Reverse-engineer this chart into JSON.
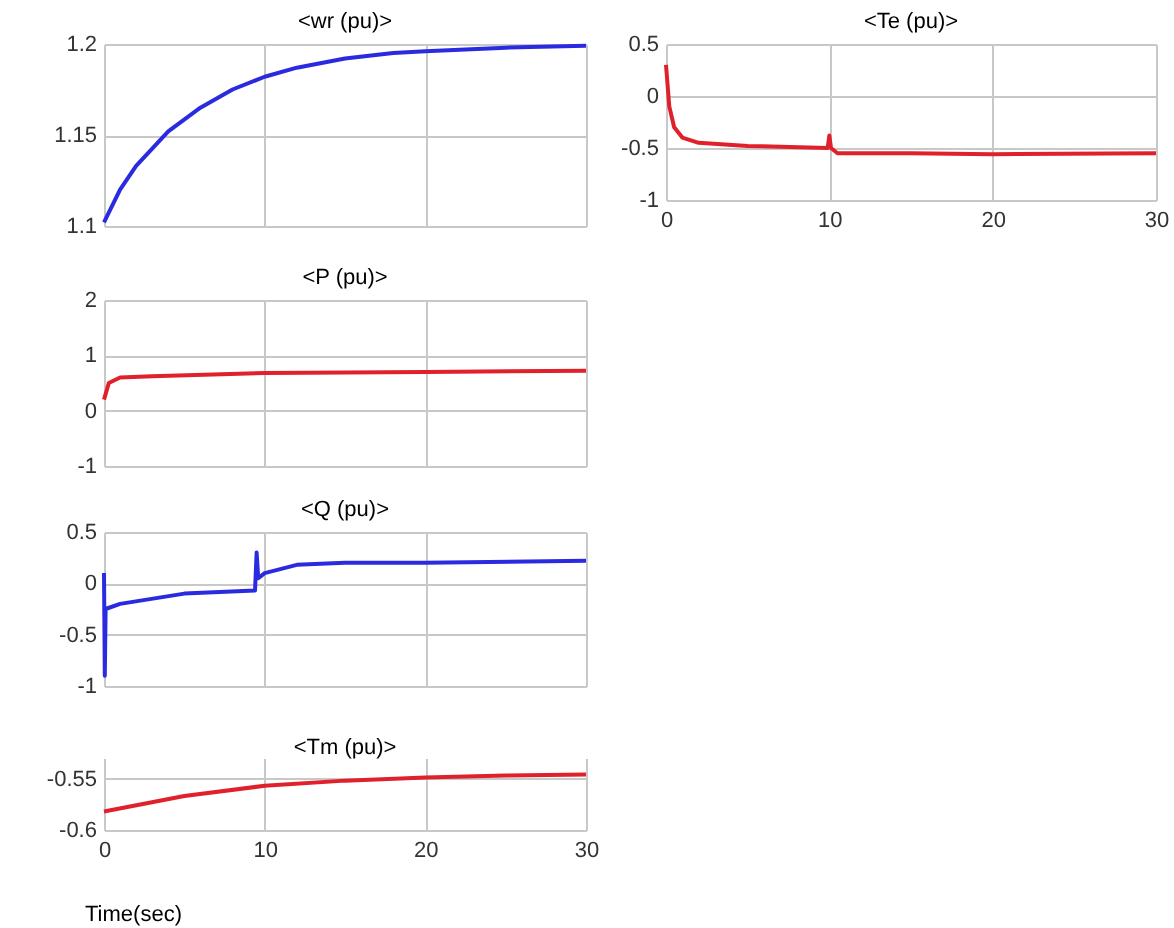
{
  "chart_data": [
    {
      "type": "line",
      "title": "<wr (pu)>",
      "x": [
        0,
        1,
        2,
        4,
        6,
        8,
        10,
        12,
        15,
        18,
        20,
        25,
        30
      ],
      "series": [
        {
          "color": "#2a2ae0",
          "values": [
            1.102,
            1.12,
            1.133,
            1.152,
            1.165,
            1.175,
            1.182,
            1.187,
            1.192,
            1.195,
            1.196,
            1.198,
            1.199
          ]
        }
      ],
      "xlim": [
        0,
        30
      ],
      "xticks": [
        0,
        10,
        20,
        30
      ],
      "ylim": [
        1.1,
        1.2
      ],
      "yticks": [
        1.1,
        1.15,
        1.2
      ],
      "grid": true,
      "tick_labels": "y"
    },
    {
      "type": "line",
      "title": "<Te (pu)>",
      "x": [
        0,
        0.2,
        0.5,
        1,
        2,
        5,
        9.9,
        10,
        10.1,
        10.5,
        15,
        20,
        30
      ],
      "series": [
        {
          "color": "#e0202a",
          "values": [
            0.3,
            -0.1,
            -0.3,
            -0.4,
            -0.45,
            -0.48,
            -0.5,
            -0.38,
            -0.5,
            -0.55,
            -0.55,
            -0.56,
            -0.55
          ]
        }
      ],
      "xlim": [
        0,
        30
      ],
      "xticks": [
        0,
        10,
        20,
        30
      ],
      "ylim": [
        -1,
        0.5
      ],
      "yticks": [
        -1,
        -0.5,
        0,
        0.5
      ],
      "grid": true
    },
    {
      "type": "line",
      "title": "<P (pu)>",
      "x": [
        0,
        0.3,
        1,
        3,
        10,
        20,
        30
      ],
      "series": [
        {
          "color": "#e0202a",
          "values": [
            0.2,
            0.5,
            0.6,
            0.62,
            0.68,
            0.7,
            0.72
          ]
        }
      ],
      "xlim": [
        0,
        30
      ],
      "xticks": [
        0,
        10,
        20,
        30
      ],
      "ylim": [
        -1,
        2
      ],
      "yticks": [
        -1,
        0,
        1,
        2
      ],
      "grid": true,
      "tick_labels": "y"
    },
    {
      "type": "line",
      "title": "<Q (pu)>",
      "x": [
        0,
        0.05,
        0.1,
        1,
        5,
        9.4,
        9.5,
        9.6,
        10,
        12,
        15,
        20,
        30
      ],
      "series": [
        {
          "color": "#2a2ae0",
          "values": [
            0.1,
            -0.9,
            -0.25,
            -0.2,
            -0.1,
            -0.07,
            0.3,
            0.05,
            0.1,
            0.18,
            0.2,
            0.2,
            0.22
          ]
        }
      ],
      "xlim": [
        0,
        30
      ],
      "xticks": [
        0,
        10,
        20,
        30
      ],
      "ylim": [
        -1,
        0.5
      ],
      "yticks": [
        -1,
        -0.5,
        0,
        0.5
      ],
      "grid": true,
      "tick_labels": "y"
    },
    {
      "type": "line",
      "title": "<Tm (pu)>",
      "xlabel": "Time(sec)",
      "x": [
        0,
        5,
        10,
        15,
        20,
        25,
        30
      ],
      "series": [
        {
          "color": "#e0202a",
          "values": [
            -0.582,
            -0.567,
            -0.557,
            -0.552,
            -0.549,
            -0.547,
            -0.546
          ]
        }
      ],
      "xlim": [
        0,
        30
      ],
      "xticks": [
        0,
        10,
        20,
        30
      ],
      "ylim": [
        -0.6,
        -0.53
      ],
      "yticks": [
        -0.6,
        -0.55
      ],
      "grid": true
    }
  ]
}
